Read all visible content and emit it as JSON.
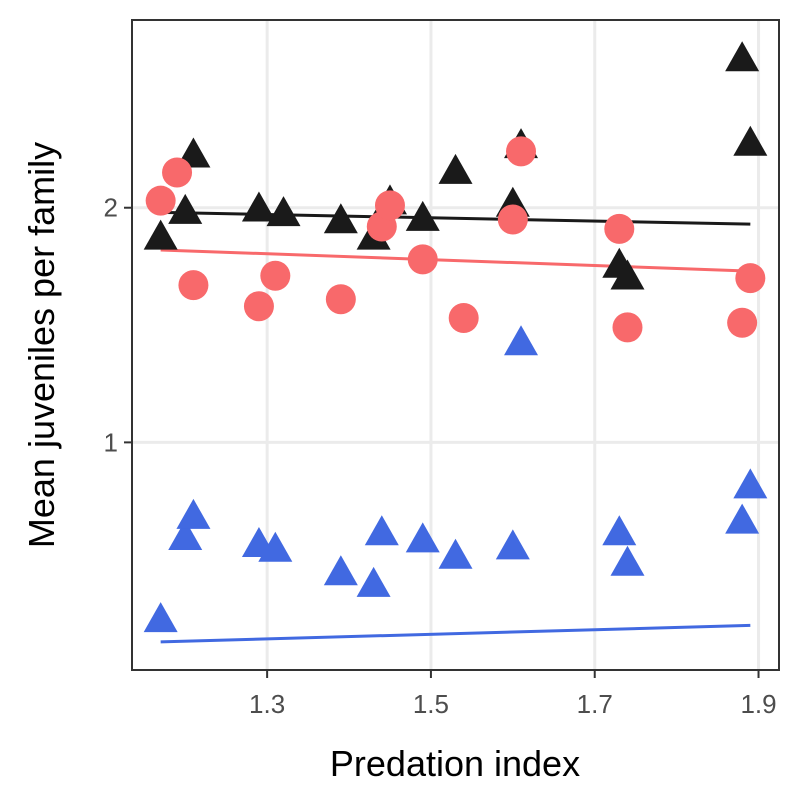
{
  "chart_data": {
    "type": "scatter",
    "title": "",
    "xlabel": "Predation index",
    "ylabel": "Mean juveniles per family",
    "xlim": [
      1.135,
      1.925
    ],
    "ylim": [
      0.03,
      2.8
    ],
    "xticks": [
      1.3,
      1.5,
      1.7,
      1.9
    ],
    "xtick_labels": [
      "1.3",
      "1.5",
      "1.7",
      "1.9"
    ],
    "yticks": [
      1,
      2
    ],
    "ytick_labels": [
      "1",
      "2"
    ],
    "grid": true,
    "legend": "none",
    "series": [
      {
        "color": "#1a1a1a",
        "marker": "triangle",
        "points": [
          [
            1.17,
            1.87
          ],
          [
            1.2,
            1.98
          ],
          [
            1.21,
            2.22
          ],
          [
            1.29,
            1.99
          ],
          [
            1.32,
            1.97
          ],
          [
            1.39,
            1.94
          ],
          [
            1.43,
            1.87
          ],
          [
            1.45,
            2.02
          ],
          [
            1.49,
            1.95
          ],
          [
            1.53,
            2.15
          ],
          [
            1.6,
            2.01
          ],
          [
            1.61,
            2.26
          ],
          [
            1.73,
            1.75
          ],
          [
            1.74,
            1.7
          ],
          [
            1.88,
            2.63
          ],
          [
            1.89,
            2.27
          ]
        ],
        "trend": [
          [
            1.17,
            1.98
          ],
          [
            1.89,
            1.93
          ]
        ]
      },
      {
        "color": "#f8696b",
        "marker": "circle",
        "points": [
          [
            1.17,
            2.03
          ],
          [
            1.19,
            2.15
          ],
          [
            1.21,
            1.67
          ],
          [
            1.29,
            1.58
          ],
          [
            1.31,
            1.71
          ],
          [
            1.39,
            1.61
          ],
          [
            1.44,
            1.92
          ],
          [
            1.45,
            2.01
          ],
          [
            1.49,
            1.78
          ],
          [
            1.54,
            1.53
          ],
          [
            1.6,
            1.95
          ],
          [
            1.61,
            2.24
          ],
          [
            1.73,
            1.91
          ],
          [
            1.74,
            1.49
          ],
          [
            1.88,
            1.51
          ],
          [
            1.89,
            1.7
          ]
        ],
        "trend": [
          [
            1.17,
            1.82
          ],
          [
            1.89,
            1.73
          ]
        ]
      },
      {
        "color": "#4169e1",
        "marker": "triangle",
        "points": [
          [
            1.17,
            0.24
          ],
          [
            1.2,
            0.59
          ],
          [
            1.21,
            0.68
          ],
          [
            1.29,
            0.56
          ],
          [
            1.31,
            0.54
          ],
          [
            1.39,
            0.44
          ],
          [
            1.43,
            0.39
          ],
          [
            1.44,
            0.61
          ],
          [
            1.49,
            0.58
          ],
          [
            1.53,
            0.51
          ],
          [
            1.6,
            0.55
          ],
          [
            1.61,
            1.42
          ],
          [
            1.73,
            0.61
          ],
          [
            1.74,
            0.48
          ],
          [
            1.88,
            0.66
          ],
          [
            1.89,
            0.81
          ]
        ],
        "trend": [
          [
            1.17,
            0.15
          ],
          [
            1.89,
            0.22
          ]
        ]
      }
    ]
  }
}
